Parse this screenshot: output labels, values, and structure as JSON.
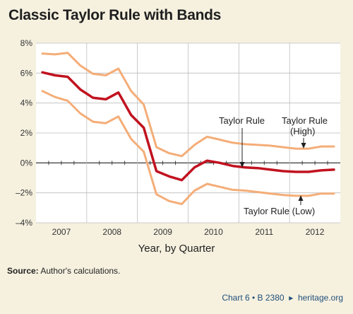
{
  "title": "Classic Taylor Rule with Bands",
  "source_label": "Source:",
  "source_text": "Author's calculations.",
  "footer_chart": "Chart 6 • B 2380",
  "footer_site": "heritage.org",
  "colors": {
    "background": "#f6f1df",
    "plot_background": "#ffffff",
    "taylor_rule": "#c1121f",
    "bands": "#f4ad78",
    "grid": "#bdbdbd",
    "zero_line": "#222222"
  },
  "chart_data": {
    "type": "line",
    "title": "Classic Taylor Rule with Bands",
    "xlabel": "Year, by Quarter",
    "ylabel": "",
    "ylim": [
      -4,
      8
    ],
    "yticks": [
      -4,
      -2,
      0,
      2,
      4,
      6,
      8
    ],
    "ytick_labels": [
      "–4%",
      "–2%",
      "0%",
      "2%",
      "4%",
      "6%",
      "8%"
    ],
    "year_labels": [
      "2007",
      "2008",
      "2009",
      "2010",
      "2011",
      "2012"
    ],
    "x_quarters": [
      "2007Q1",
      "2007Q2",
      "2007Q3",
      "2007Q4",
      "2008Q1",
      "2008Q2",
      "2008Q3",
      "2008Q4",
      "2009Q1",
      "2009Q2",
      "2009Q3",
      "2009Q4",
      "2010Q1",
      "2010Q2",
      "2010Q3",
      "2010Q4",
      "2011Q1",
      "2011Q2",
      "2011Q3",
      "2011Q4",
      "2012Q1",
      "2012Q2",
      "2012Q3",
      "2012Q4"
    ],
    "grid": true,
    "series": [
      {
        "name": "Taylor Rule (High)",
        "color": "#f4ad78",
        "values": [
          7.3,
          7.25,
          7.35,
          6.5,
          5.95,
          5.85,
          6.3,
          4.8,
          3.9,
          1.05,
          0.65,
          0.45,
          1.2,
          1.75,
          1.55,
          1.35,
          1.25,
          1.2,
          1.15,
          1.05,
          0.95,
          0.95,
          1.1,
          1.1
        ]
      },
      {
        "name": "Taylor Rule",
        "color": "#c1121f",
        "values": [
          6.05,
          5.85,
          5.75,
          4.9,
          4.35,
          4.25,
          4.7,
          3.2,
          2.35,
          -0.55,
          -0.9,
          -1.15,
          -0.3,
          0.15,
          0.0,
          -0.2,
          -0.3,
          -0.35,
          -0.45,
          -0.55,
          -0.6,
          -0.6,
          -0.5,
          -0.45
        ]
      },
      {
        "name": "Taylor Rule (Low)",
        "color": "#f4ad78",
        "values": [
          4.8,
          4.4,
          4.15,
          3.3,
          2.75,
          2.65,
          3.1,
          1.6,
          0.75,
          -2.1,
          -2.55,
          -2.75,
          -1.85,
          -1.4,
          -1.6,
          -1.8,
          -1.85,
          -1.95,
          -2.05,
          -2.15,
          -2.2,
          -2.2,
          -2.05,
          -2.05
        ]
      }
    ],
    "annotations": [
      "Taylor Rule",
      "Taylor Rule",
      "(High)",
      "Taylor Rule (Low)"
    ]
  }
}
